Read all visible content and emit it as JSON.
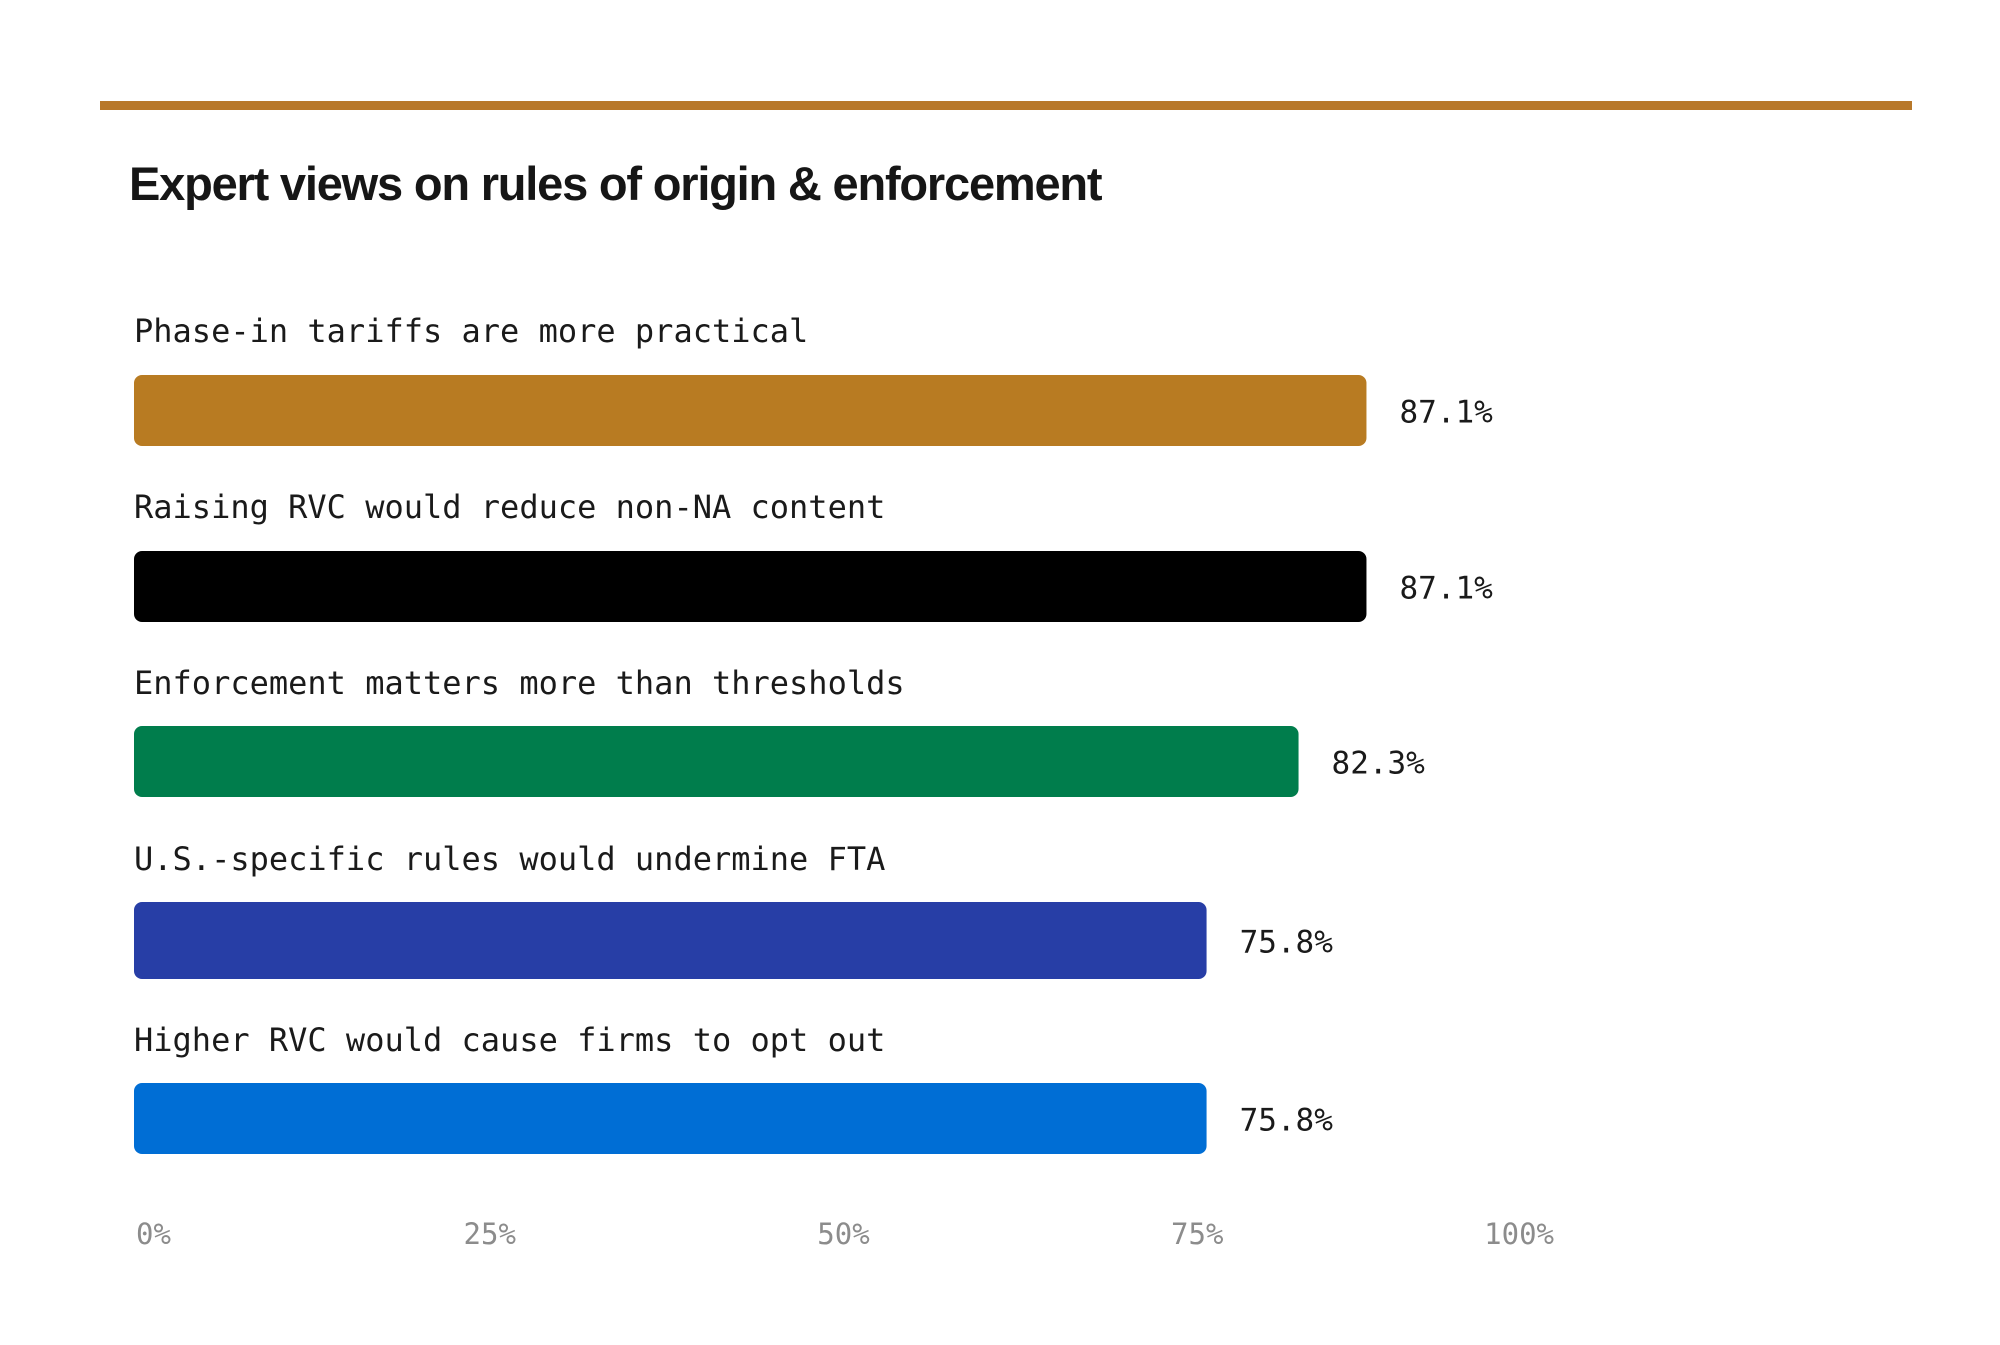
{
  "chart_data": {
    "type": "bar",
    "orientation": "horizontal",
    "title": "Expert views on rules of origin & enforcement",
    "categories": [
      "Phase-in tariffs are more practical",
      "Raising RVC would reduce non-NA content",
      "Enforcement matters more than thresholds",
      "U.S.-specific rules would undermine FTA",
      "Higher RVC would cause firms to opt out"
    ],
    "values": [
      87.1,
      87.1,
      82.3,
      75.8,
      75.8
    ],
    "value_labels": [
      "87.1%",
      "87.1%",
      "82.3%",
      "75.8%",
      "75.8%"
    ],
    "colors": [
      "#b87b22",
      "#000000",
      "#007d4c",
      "#273ea6",
      "#006ed5"
    ],
    "xlim": [
      0,
      100
    ],
    "x_ticks": [
      0,
      25,
      50,
      75,
      100
    ],
    "x_tick_labels": [
      "0%",
      "25%",
      "50%",
      "75%",
      "100%"
    ],
    "accent_color": "#b8782a",
    "grid": false,
    "legend": "none"
  }
}
